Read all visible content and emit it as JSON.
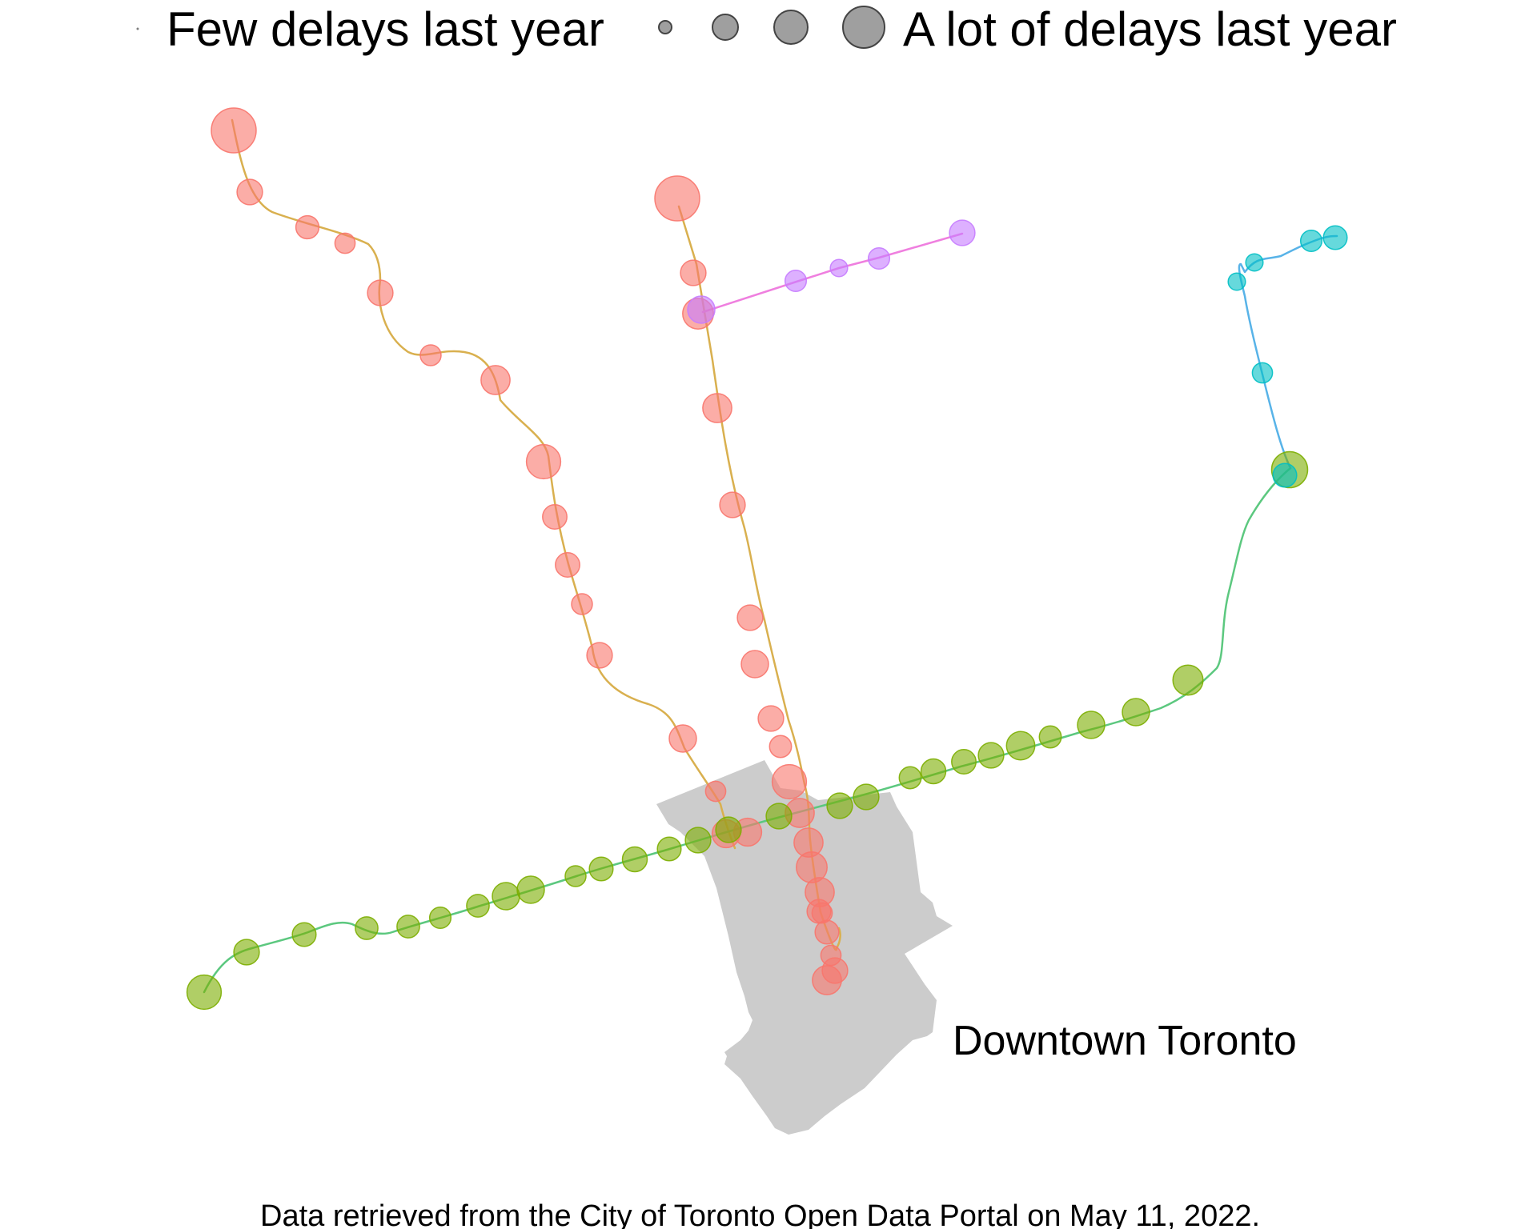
{
  "legend": {
    "low_label": "Few delays last year",
    "high_label": "A lot of delays last year",
    "swatch_color": "#7f7f7f",
    "swatch_levels": [
      "smallest",
      "small",
      "medium",
      "large",
      "largest"
    ]
  },
  "region": {
    "label": "Downtown Toronto",
    "fill_color": "#cccccc"
  },
  "caption": "Data retrieved from the City of Toronto Open Data Portal on May 11, 2022.",
  "lines": [
    {
      "id": "line-1-west-branch",
      "color": "#d9b04f"
    },
    {
      "id": "line-1-east-branch",
      "color": "#d9b04f"
    },
    {
      "id": "line-2",
      "color": "#5cc87f"
    },
    {
      "id": "line-3",
      "color": "#58b3e8"
    },
    {
      "id": "line-4",
      "color": "#ef7fdf"
    }
  ],
  "station_groups": [
    {
      "id": "line-1-stations",
      "color": "#f8766d",
      "relative_delays": [
        1.0,
        0.45,
        0.38,
        0.3,
        0.45,
        0.32,
        0.55,
        0.7,
        0.42,
        0.42,
        0.32,
        0.45,
        0.5,
        0.3,
        0.52,
        0.52,
        1.0,
        0.45,
        0.6,
        0.55,
        0.45,
        0.45,
        0.5,
        0.45,
        0.35,
        0.7,
        0.55,
        0.55,
        0.6,
        0.55,
        0.4,
        0.3,
        0.4,
        0.3,
        0.45,
        0.55
      ]
    },
    {
      "id": "line-2-stations",
      "color": "#7cae00",
      "relative_delays": [
        0.7,
        0.45,
        0.4,
        0.37,
        0.37,
        0.33,
        0.37,
        0.5,
        0.5,
        0.32,
        0.4,
        0.43,
        0.4,
        0.45,
        0.45,
        0.45,
        0.45,
        0.45,
        0.35,
        0.43,
        0.42,
        0.45,
        0.53,
        0.35,
        0.5,
        0.5,
        0.58,
        0.75
      ]
    },
    {
      "id": "line-3-stations",
      "color": "#00bfc4",
      "relative_delays": [
        0.3,
        0.22,
        0.22,
        0.33,
        0.4,
        0.4
      ]
    },
    {
      "id": "line-4-stations",
      "color": "#c77cff",
      "relative_delays": [
        0.5,
        0.33,
        0.22,
        0.33,
        0.45
      ]
    }
  ]
}
